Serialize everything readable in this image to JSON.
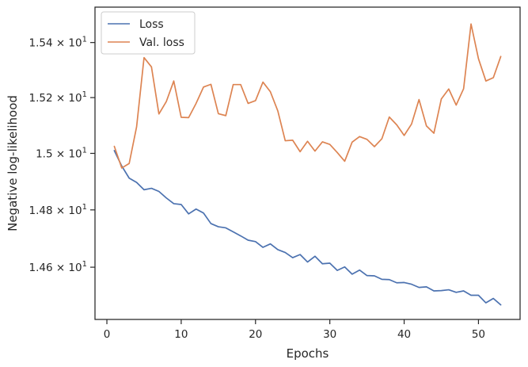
{
  "chart_data": {
    "type": "line",
    "title": "",
    "xlabel": "Epochs",
    "ylabel": "Negative log-likelihood",
    "yscale": "log",
    "xlim": [
      -1.6,
      55.6
    ],
    "ylim": [
      14.42,
      15.53
    ],
    "x_ticks": [
      0,
      10,
      20,
      30,
      40,
      50
    ],
    "x_tick_labels": [
      "0",
      "10",
      "20",
      "30",
      "40",
      "50"
    ],
    "y_ticks": [
      14.6,
      14.8,
      15.0,
      15.2,
      15.4
    ],
    "y_tick_labels": [
      {
        "mantissa": "1.46",
        "times": "×",
        "base": "10",
        "exp": "1"
      },
      {
        "mantissa": "1.48",
        "times": "×",
        "base": "10",
        "exp": "1"
      },
      {
        "mantissa": "1.5",
        "times": "×",
        "base": "10",
        "exp": "1"
      },
      {
        "mantissa": "1.52",
        "times": "×",
        "base": "10",
        "exp": "1"
      },
      {
        "mantissa": "1.54",
        "times": "×",
        "base": "10",
        "exp": "1"
      }
    ],
    "grid": false,
    "legend_position": "upper-left",
    "x": [
      1,
      2,
      3,
      4,
      5,
      6,
      7,
      8,
      9,
      10,
      11,
      12,
      13,
      14,
      15,
      16,
      17,
      18,
      19,
      20,
      21,
      22,
      23,
      24,
      25,
      26,
      27,
      28,
      29,
      30,
      31,
      32,
      33,
      34,
      35,
      36,
      37,
      38,
      39,
      40,
      41,
      42,
      43,
      44,
      45,
      46,
      47,
      48,
      49,
      50,
      51,
      52,
      53
    ],
    "series": [
      {
        "name": "Loss",
        "color": "#4c72b0",
        "values": [
          15.01,
          14.955,
          14.912,
          14.897,
          14.871,
          14.876,
          14.865,
          14.842,
          14.822,
          14.819,
          14.786,
          14.803,
          14.789,
          14.752,
          14.741,
          14.737,
          14.723,
          14.709,
          14.694,
          14.689,
          14.669,
          14.681,
          14.661,
          14.651,
          14.633,
          14.644,
          14.618,
          14.638,
          14.612,
          14.614,
          14.589,
          14.601,
          14.576,
          14.59,
          14.571,
          14.57,
          14.558,
          14.557,
          14.546,
          14.547,
          14.541,
          14.53,
          14.532,
          14.518,
          14.519,
          14.522,
          14.513,
          14.518,
          14.503,
          14.503,
          14.477,
          14.492,
          14.47
        ]
      },
      {
        "name": "Val. loss",
        "color": "#dd8452",
        "values": [
          15.025,
          14.948,
          14.964,
          15.095,
          15.345,
          15.311,
          15.141,
          15.186,
          15.26,
          15.129,
          15.128,
          15.179,
          15.238,
          15.248,
          15.142,
          15.135,
          15.247,
          15.247,
          15.179,
          15.189,
          15.256,
          15.221,
          15.152,
          15.045,
          15.047,
          15.006,
          15.043,
          15.008,
          15.041,
          15.032,
          15.003,
          14.972,
          15.04,
          15.06,
          15.05,
          15.024,
          15.052,
          15.13,
          15.102,
          15.064,
          15.105,
          15.193,
          15.098,
          15.072,
          15.195,
          15.231,
          15.173,
          15.232,
          15.468,
          15.341,
          15.26,
          15.272,
          15.349
        ]
      }
    ]
  }
}
